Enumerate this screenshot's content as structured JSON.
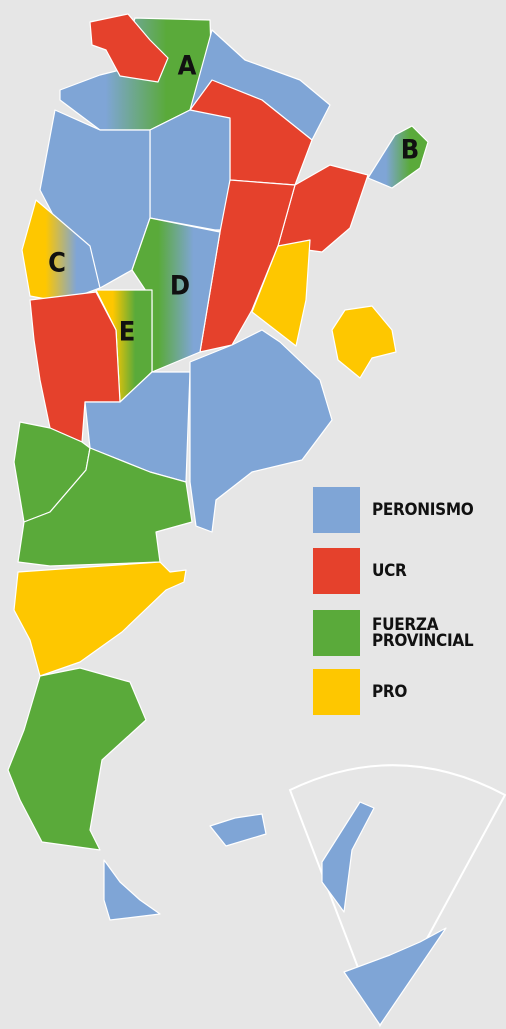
{
  "map": {
    "labels": [
      "A",
      "B",
      "C",
      "D",
      "E"
    ],
    "legend": [
      {
        "label": "PERONISMO",
        "color": "#7fa5d6"
      },
      {
        "label": "UCR",
        "color": "#e5412c"
      },
      {
        "label": "FUERZA PROVINCIAL",
        "color": "#5aaa3a"
      },
      {
        "label": "PRO",
        "color": "#fec700"
      }
    ]
  }
}
